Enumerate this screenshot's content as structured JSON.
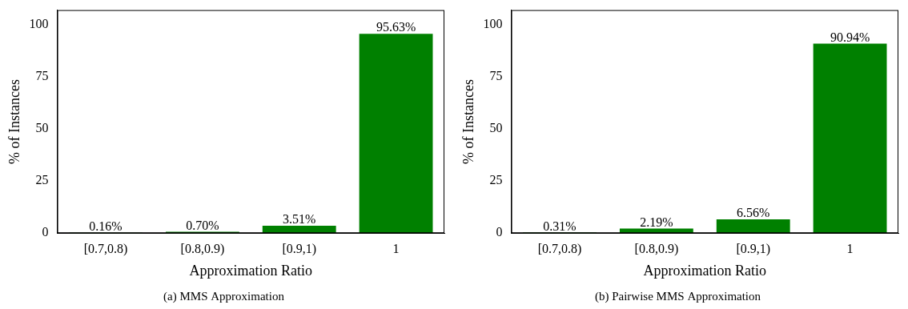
{
  "chart_data": [
    {
      "type": "bar",
      "title": "(a) MMS Approximation",
      "xlabel": "Approximation Ratio",
      "ylabel": "% of Instances",
      "categories": [
        "[0.7,0.8)",
        "[0.8,0.9)",
        "[0.9,1)",
        "1"
      ],
      "values": [
        0.16,
        0.7,
        3.51,
        95.63
      ],
      "value_labels": [
        "0.16%",
        "0.70%",
        "3.51%",
        "95.63%"
      ],
      "color": "#008000",
      "ylim": [
        0,
        107
      ],
      "yticks": [
        0,
        25,
        50,
        75,
        100
      ],
      "grid": false,
      "data_labels": true
    },
    {
      "type": "bar",
      "title": "(b) Pairwise MMS Approximation",
      "xlabel": "Approximation Ratio",
      "ylabel": "% of Instances",
      "categories": [
        "[0.7,0.8)",
        "[0.8,0.9)",
        "[0.9,1)",
        "1"
      ],
      "values": [
        0.31,
        2.19,
        6.56,
        90.94
      ],
      "value_labels": [
        "0.31%",
        "2.19%",
        "6.56%",
        "90.94%"
      ],
      "color": "#008000",
      "ylim": [
        0,
        107
      ],
      "yticks": [
        0,
        25,
        50,
        75,
        100
      ],
      "grid": false,
      "data_labels": true
    }
  ]
}
